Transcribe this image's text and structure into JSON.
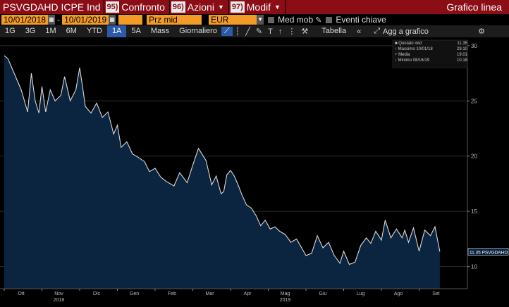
{
  "toolbar": {
    "ticker": "PSVGDAHD ICPE Ind",
    "buttons": [
      {
        "num": "95)",
        "label": "Confronto"
      },
      {
        "num": "96)",
        "label": "Azioni"
      },
      {
        "num": "97)",
        "label": "Modif"
      }
    ],
    "title": "Grafico linea"
  },
  "params": {
    "start_date": "10/01/2018",
    "end_date": "10/01/2019",
    "separator": "-",
    "price_field": "Prz mid",
    "currency": "EUR",
    "moving_avg": "Med mob",
    "key_events": "Eventi chiave"
  },
  "periods": [
    "1G",
    "3G",
    "1M",
    "6M",
    "YTD",
    "1A",
    "5A",
    "Mass",
    "Giornaliero"
  ],
  "active_period": "1A",
  "toolbar3": {
    "table": "Tabella",
    "add_chart": "Agg a grafico"
  },
  "legend": {
    "rows": [
      {
        "label": "Quotato mid",
        "value": "11.35"
      },
      {
        "label": "Massimo 10/01/18",
        "value": "29.10"
      },
      {
        "label": "Media",
        "value": "19.01"
      },
      {
        "label": "Minimo 08/16/19",
        "value": "10.18"
      }
    ]
  },
  "colors": {
    "accent_red": "#8b0d16",
    "field_orange": "#f29b27",
    "line": "#d9d9d9",
    "area": "#0b2440"
  },
  "chart_data": {
    "type": "area",
    "y_ticks": [
      10,
      15,
      20,
      25,
      30
    ],
    "ylim": [
      8,
      30.5
    ],
    "x_ticks": [
      "Ott",
      "Nov",
      "Dic",
      "Gen",
      "Feb",
      "Mar",
      "Apr",
      "Mag",
      "Giu",
      "Lug",
      "Ago",
      "Set"
    ],
    "x_tick_months": [
      0,
      1,
      2,
      3,
      4,
      5,
      6,
      7,
      8,
      9,
      10,
      11
    ],
    "year_labels": [
      {
        "label": "2018",
        "month": 1
      },
      {
        "label": "2019",
        "month": 7
      }
    ],
    "last_value_label": "11.35 PSVGDAHD",
    "series": [
      {
        "name": "PSVGDAHD",
        "x_month": [
          0,
          0.1,
          0.25,
          0.45,
          0.62,
          0.72,
          0.82,
          0.92,
          1.0,
          1.1,
          1.22,
          1.35,
          1.5,
          1.6,
          1.75,
          1.9,
          2.0,
          2.08,
          2.15,
          2.3,
          2.45,
          2.6,
          2.75,
          2.9,
          3.0,
          3.1,
          3.25,
          3.4,
          3.55,
          3.72,
          3.85,
          4.0,
          4.15,
          4.3,
          4.5,
          4.65,
          4.85,
          5.0,
          5.15,
          5.35,
          5.5,
          5.62,
          5.75,
          5.82,
          5.9,
          6.0,
          6.1,
          6.2,
          6.3,
          6.42,
          6.55,
          6.68,
          6.8,
          6.92,
          7.05,
          7.18,
          7.3,
          7.45,
          7.6,
          7.75,
          7.9,
          8.0,
          8.15,
          8.3,
          8.45,
          8.6,
          8.75,
          8.9,
          9.0,
          9.15,
          9.3,
          9.45,
          9.6,
          9.72,
          9.85,
          10.0,
          10.1,
          10.25,
          10.4,
          10.55,
          10.62,
          10.72,
          10.85,
          11.0,
          11.15,
          11.3,
          11.42,
          11.55
        ],
        "values": [
          29.1,
          28.8,
          27.6,
          26.0,
          24.0,
          27.5,
          25.0,
          23.9,
          26.3,
          24.0,
          26.0,
          25.0,
          25.5,
          27.2,
          25.0,
          26.0,
          28.0,
          26.2,
          24.5,
          23.9,
          24.8,
          23.5,
          24.0,
          22.0,
          22.8,
          20.8,
          21.3,
          20.2,
          19.9,
          19.5,
          18.6,
          18.9,
          18.1,
          17.7,
          17.3,
          18.5,
          17.6,
          19.2,
          20.7,
          19.6,
          17.4,
          18.2,
          16.6,
          16.8,
          18.3,
          18.7,
          18.2,
          17.4,
          16.5,
          15.6,
          15.3,
          14.6,
          13.7,
          14.2,
          13.4,
          13.6,
          13.2,
          12.9,
          12.2,
          12.5,
          11.6,
          11.0,
          11.2,
          12.8,
          11.7,
          12.2,
          11.0,
          10.3,
          11.4,
          10.2,
          10.4,
          11.9,
          12.6,
          12.1,
          13.2,
          12.4,
          14.2,
          12.6,
          13.4,
          12.6,
          13.3,
          12.2,
          13.5,
          11.4,
          13.3,
          12.8,
          13.6,
          11.35
        ]
      }
    ]
  }
}
